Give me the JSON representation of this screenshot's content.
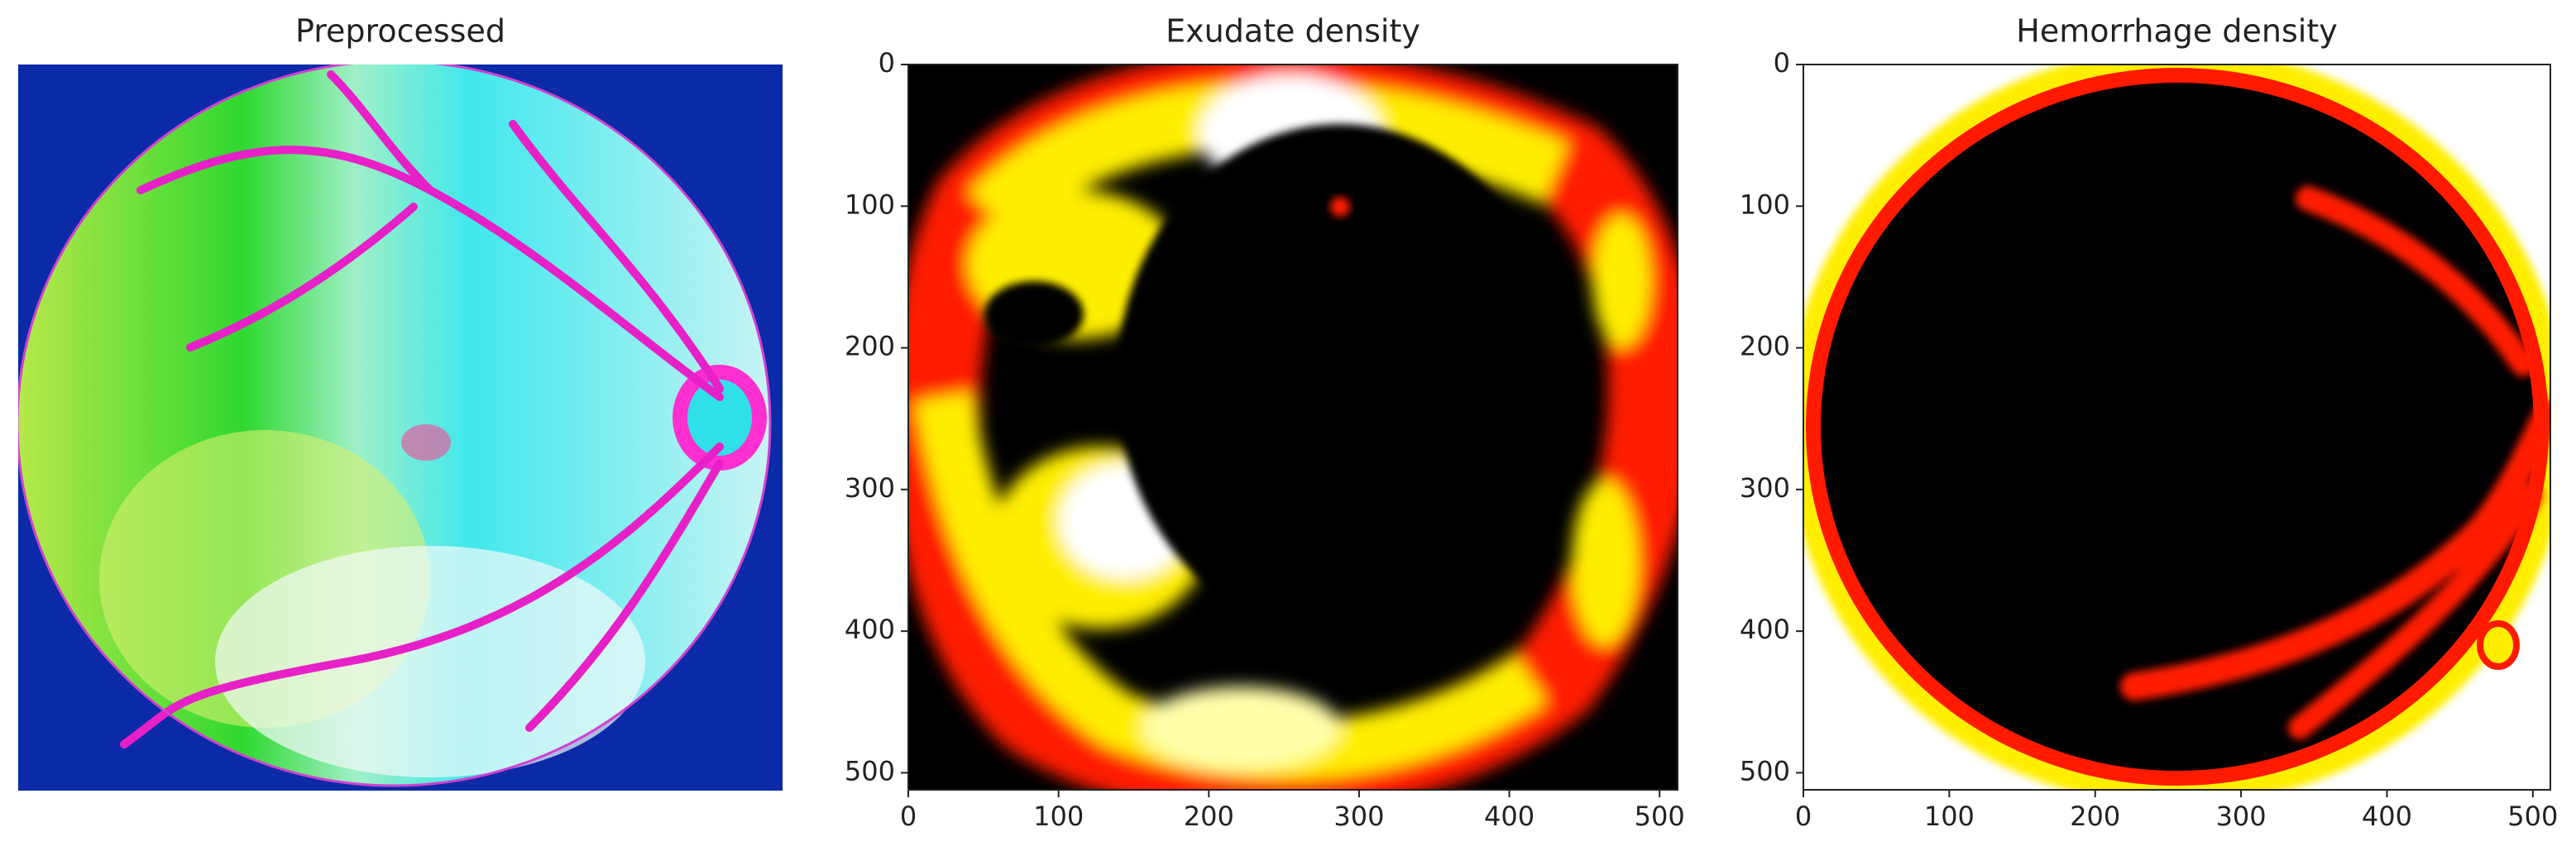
{
  "chart_data": [
    {
      "type": "image",
      "title": "Preprocessed"
    },
    {
      "type": "image",
      "title": "Exudate density",
      "xlim": [
        0,
        512
      ],
      "ylim": [
        512,
        0
      ],
      "xticks": [
        0,
        100,
        200,
        300,
        400,
        500
      ],
      "yticks": [
        0,
        100,
        200,
        300,
        400,
        500
      ]
    },
    {
      "type": "image",
      "title": "Hemorrhage density",
      "xlim": [
        0,
        512
      ],
      "ylim": [
        512,
        0
      ],
      "xticks": [
        0,
        100,
        200,
        300,
        400,
        500
      ],
      "yticks": [
        0,
        100,
        200,
        300,
        400,
        500
      ]
    }
  ]
}
